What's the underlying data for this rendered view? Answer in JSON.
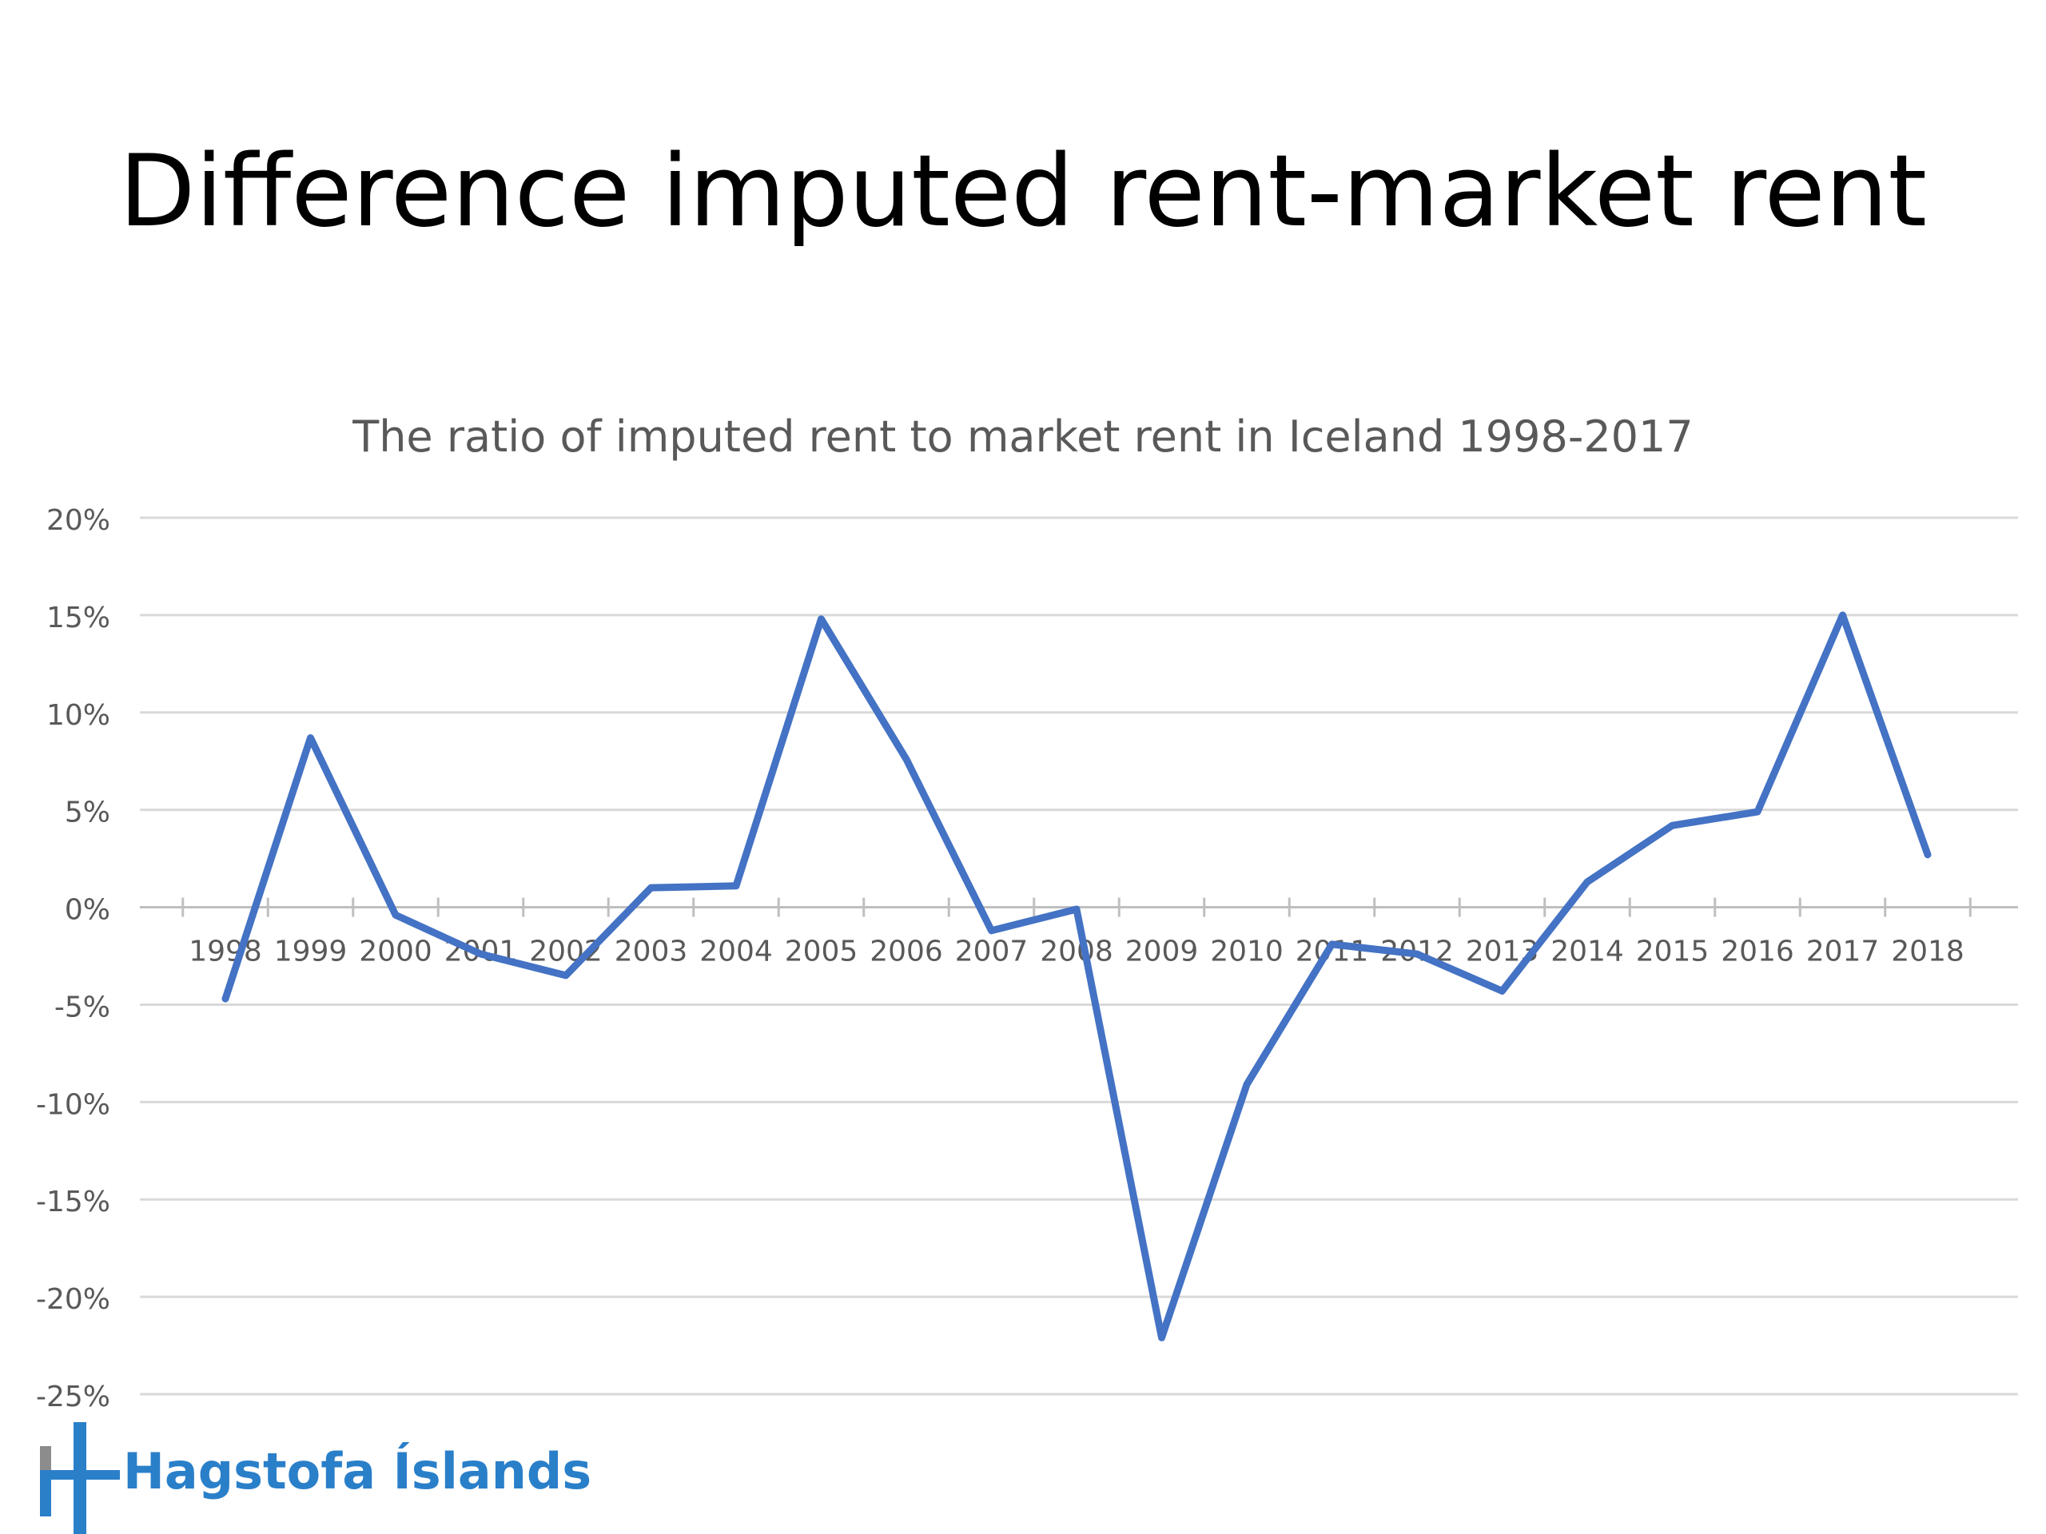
{
  "slide": {
    "title": "Difference imputed rent-market rent"
  },
  "logo": {
    "text": "Hagstofa Íslands",
    "colors": {
      "blue": "#2a7fc9",
      "gray": "#8c8c8c"
    }
  },
  "chart_data": {
    "type": "line",
    "title": "The ratio of imputed rent to market rent in Iceland 1998-2017",
    "xlabel": "",
    "ylabel": "",
    "categories": [
      "1998",
      "1999",
      "2000",
      "2001",
      "2002",
      "2003",
      "2004",
      "2005",
      "2006",
      "2007",
      "2008",
      "2009",
      "2010",
      "2011",
      "2012",
      "2013",
      "2014",
      "2015",
      "2016",
      "2017",
      "2018"
    ],
    "series": [
      {
        "values": [
          -4.7,
          8.7,
          -0.4,
          -2.4,
          -3.5,
          1.0,
          1.1,
          14.8,
          7.6,
          -1.2,
          -0.1,
          -22.1,
          -9.1,
          -1.9,
          -2.4,
          -4.3,
          1.3,
          4.2,
          4.9,
          15.0,
          2.7
        ],
        "color": "#4472c4"
      }
    ],
    "yticks": [
      "20%",
      "15%",
      "10%",
      "5%",
      "0%",
      "-5%",
      "-10%",
      "-15%",
      "-20%",
      "-25%"
    ],
    "ylim": [
      -25,
      20
    ],
    "ytick_step": 5,
    "grid": true,
    "legend": "none",
    "colors": {
      "line": "#4472c4",
      "gridline": "#d9d9d9",
      "axis": "#bfbfbf",
      "tick_label": "#595959"
    }
  }
}
